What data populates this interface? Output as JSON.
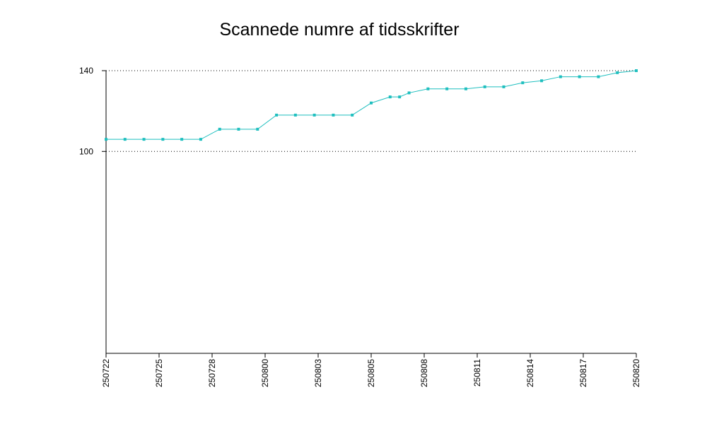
{
  "chart_data": {
    "type": "line",
    "title": "Scannede numre af tidsskrifter",
    "x": [
      0,
      1,
      2,
      3,
      4,
      5,
      6,
      7,
      8,
      9,
      10,
      11,
      12,
      13,
      14,
      15,
      15.5,
      16,
      17,
      18,
      19,
      20,
      21,
      22,
      23,
      24,
      25,
      26,
      27,
      28
    ],
    "series": [
      {
        "name": null,
        "color": "#1fbfbf",
        "values": [
          106,
          106,
          106,
          106,
          106,
          106,
          111,
          111,
          111,
          118,
          118,
          118,
          118,
          118,
          124,
          127,
          127,
          129,
          131,
          131,
          131,
          132,
          132,
          134,
          135,
          137,
          137,
          137,
          139,
          140
        ]
      }
    ],
    "xlim": [
      0,
      28
    ],
    "xticks": [
      {
        "value": 0,
        "label": "250722"
      },
      {
        "value": 2.8,
        "label": "250725"
      },
      {
        "value": 5.6,
        "label": "250728"
      },
      {
        "value": 8.4,
        "label": "250800"
      },
      {
        "value": 11.2,
        "label": "250803"
      },
      {
        "value": 14,
        "label": "250805"
      },
      {
        "value": 16.8,
        "label": "250808"
      },
      {
        "value": 19.6,
        "label": "250811"
      },
      {
        "value": 22.4,
        "label": "250814"
      },
      {
        "value": 25.2,
        "label": "250817"
      },
      {
        "value": 28,
        "label": "250820"
      }
    ],
    "ylim": [
      0,
      140
    ],
    "yticks": [
      100,
      140
    ],
    "grid": true
  }
}
